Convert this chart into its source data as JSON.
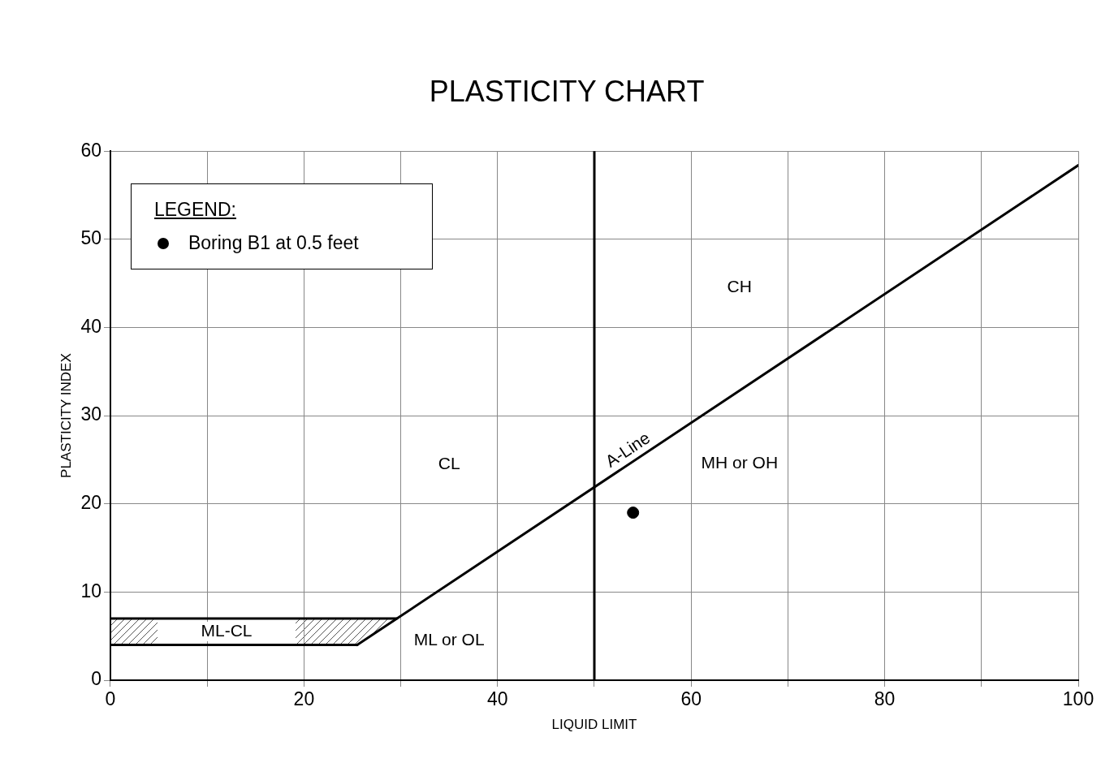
{
  "chart_data": {
    "type": "line",
    "title": "PLASTICITY CHART",
    "xlabel": "LIQUID LIMIT",
    "ylabel": "PLASTICITY INDEX",
    "legend_title": "LEGEND:",
    "xlim": [
      0,
      100
    ],
    "ylim": [
      0,
      60
    ],
    "xticks": [
      0,
      {
        "value": 10,
        "label": null
      },
      20,
      {
        "value": 30,
        "label": null
      },
      40,
      {
        "value": 50,
        "label": null
      },
      60,
      {
        "value": 70,
        "label": null
      },
      80,
      {
        "value": 90,
        "label": null
      },
      100
    ],
    "yticks": [
      0,
      10,
      20,
      30,
      40,
      50,
      60
    ],
    "grid": true,
    "legend": "top left",
    "series": [
      {
        "name": "A-Line",
        "color": "#000000",
        "x": [
          25.5,
          100
        ],
        "values": [
          4,
          58.4
        ]
      },
      {
        "color": "#000000",
        "x": [
          0,
          29.6
        ],
        "values": [
          7,
          7
        ]
      },
      {
        "color": "#000000",
        "x": [
          0,
          25.5
        ],
        "values": [
          4,
          4
        ]
      },
      {
        "type": "scatter",
        "name": "Boring B1 at 0.5 feet",
        "color": "#000000",
        "marker": "circle",
        "x": [
          54
        ],
        "values": [
          19
        ]
      }
    ],
    "ref_lines": [
      {
        "axis": "x",
        "value": 50,
        "color": "#000000"
      }
    ],
    "annotations": [
      {
        "text": "CH",
        "x": 65,
        "y": 44.5
      },
      {
        "text": "CL",
        "x": 35,
        "y": 24.5
      },
      "MH or OH",
      "ML or OL",
      "ML-CL"
    ]
  }
}
